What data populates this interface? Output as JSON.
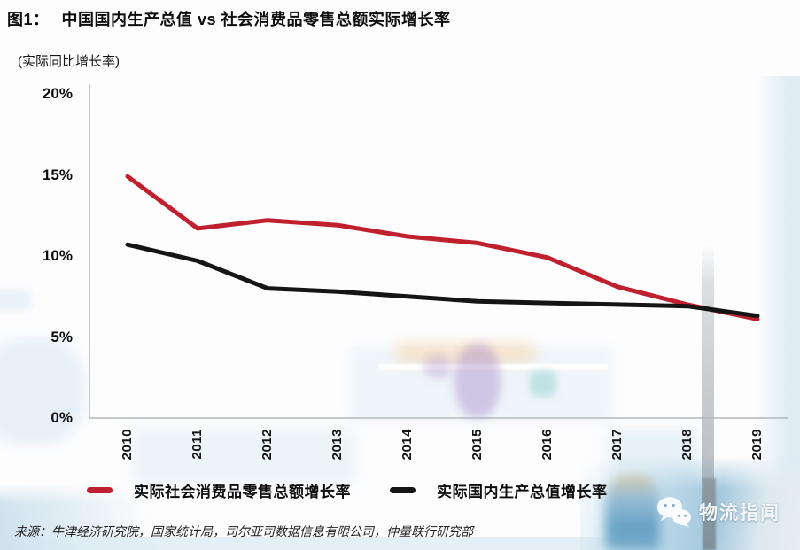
{
  "figure": {
    "title_prefix": "图1：",
    "title_main": "中国国内生产总值 vs 社会消费品零售总额实际增长率",
    "subtitle": "(实际同比增长率)",
    "source": "来源：牛津经济研究院，国家统计局，司尔亚司数据信息有限公司，仲量联行研究部"
  },
  "chart_data": {
    "type": "line",
    "title": "中国国内生产总值 vs 社会消费品零售总额实际增长率",
    "ylabel": "实际同比增长率",
    "categories": [
      "2010",
      "2011",
      "2012",
      "2013",
      "2014",
      "2015",
      "2016",
      "2017",
      "2018",
      "2019"
    ],
    "series": [
      {
        "name": "实际社会消费品零售总额增长率",
        "color": "#C01F2E",
        "values": [
          14.9,
          11.7,
          12.2,
          11.9,
          11.2,
          10.8,
          9.9,
          8.1,
          7.0,
          6.1
        ]
      },
      {
        "name": "实际国内生产总值增长率",
        "color": "#151515",
        "values": [
          10.7,
          9.7,
          8.0,
          7.8,
          7.5,
          7.2,
          7.1,
          7.0,
          6.9,
          6.3
        ]
      }
    ],
    "ylim": [
      0,
      20
    ],
    "yticks": [
      20,
      15,
      10,
      5,
      0
    ],
    "ytick_labels": [
      "20%",
      "15%",
      "10%",
      "5%",
      "0%"
    ],
    "grid": false,
    "legend_position": "bottom",
    "axis_color": "#b3b8bc"
  },
  "watermark": {
    "text": "物流指闻"
  }
}
